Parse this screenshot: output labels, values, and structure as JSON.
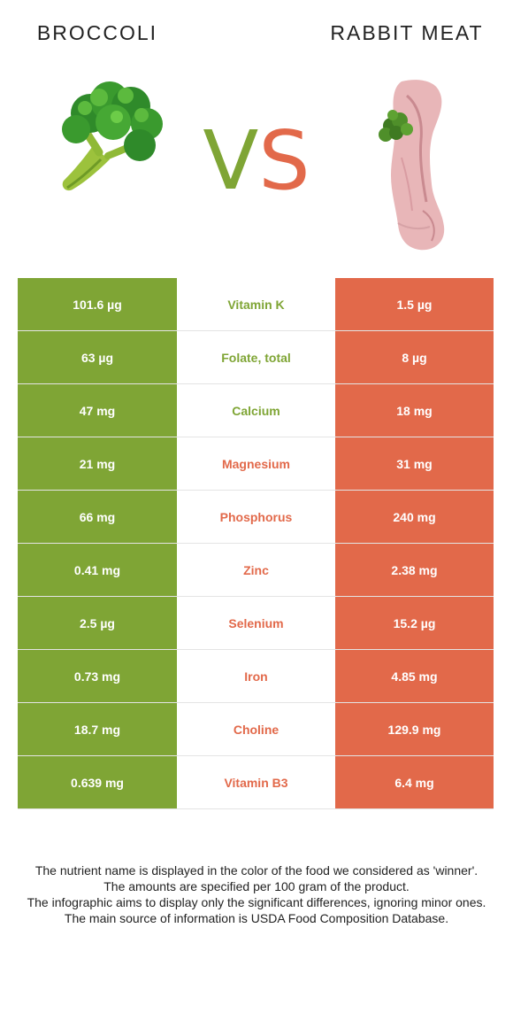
{
  "header": {
    "left_food": "BROCCOLI",
    "right_food": "RABBIT MEAT",
    "vs_v": "V",
    "vs_s": "S"
  },
  "colors": {
    "left_accent": "#7fa535",
    "right_accent": "#e2694a"
  },
  "rows": [
    {
      "nutrient": "Vitamin K",
      "left": "101.6 µg",
      "right": "1.5 µg",
      "winner": "left"
    },
    {
      "nutrient": "Folate, total",
      "left": "63 µg",
      "right": "8 µg",
      "winner": "left"
    },
    {
      "nutrient": "Calcium",
      "left": "47 mg",
      "right": "18 mg",
      "winner": "left"
    },
    {
      "nutrient": "Magnesium",
      "left": "21 mg",
      "right": "31 mg",
      "winner": "right"
    },
    {
      "nutrient": "Phosphorus",
      "left": "66 mg",
      "right": "240 mg",
      "winner": "right"
    },
    {
      "nutrient": "Zinc",
      "left": "0.41 mg",
      "right": "2.38 mg",
      "winner": "right"
    },
    {
      "nutrient": "Selenium",
      "left": "2.5 µg",
      "right": "15.2 µg",
      "winner": "right"
    },
    {
      "nutrient": "Iron",
      "left": "0.73 mg",
      "right": "4.85 mg",
      "winner": "right"
    },
    {
      "nutrient": "Choline",
      "left": "18.7 mg",
      "right": "129.9 mg",
      "winner": "right"
    },
    {
      "nutrient": "Vitamin B3",
      "left": "0.639 mg",
      "right": "6.4 mg",
      "winner": "right"
    }
  ],
  "footnote": {
    "line1": "The nutrient name is displayed in the color of the food we considered as 'winner'.",
    "line2": "The amounts are specified per 100 gram of the product.",
    "line3": "The infographic aims to display only the significant differences, ignoring minor ones.",
    "line4": "The main source of information is USDA Food Composition Database."
  }
}
